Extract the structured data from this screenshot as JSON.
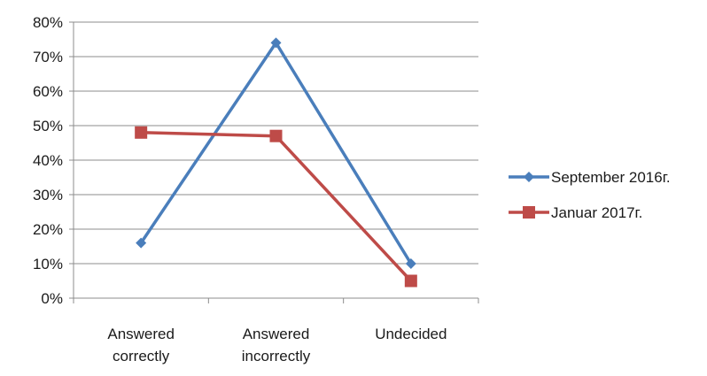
{
  "chart_data": {
    "type": "line",
    "title": "",
    "xlabel": "",
    "ylabel": "",
    "categories": [
      "Answered correctly",
      "Answered incorrectly",
      "Undecided"
    ],
    "category_lines": [
      [
        "Answered",
        "correctly"
      ],
      [
        "Answered",
        "incorrectly"
      ],
      [
        "Undecided"
      ]
    ],
    "ylim": [
      0,
      0.8
    ],
    "yticks": [
      0,
      0.1,
      0.2,
      0.3,
      0.4,
      0.5,
      0.6,
      0.7,
      0.8
    ],
    "ytick_labels": [
      "0%",
      "10%",
      "20%",
      "30%",
      "40%",
      "50%",
      "60%",
      "70%",
      "80%"
    ],
    "grid": true,
    "legend_position": "right",
    "series": [
      {
        "name": "September 2016г.",
        "values": [
          0.16,
          0.74,
          0.1
        ],
        "color": "#4a7ebb",
        "marker": "diamond"
      },
      {
        "name": "Januar 2017г.",
        "values": [
          0.48,
          0.47,
          0.05
        ],
        "color": "#be4b48",
        "marker": "square"
      }
    ]
  }
}
